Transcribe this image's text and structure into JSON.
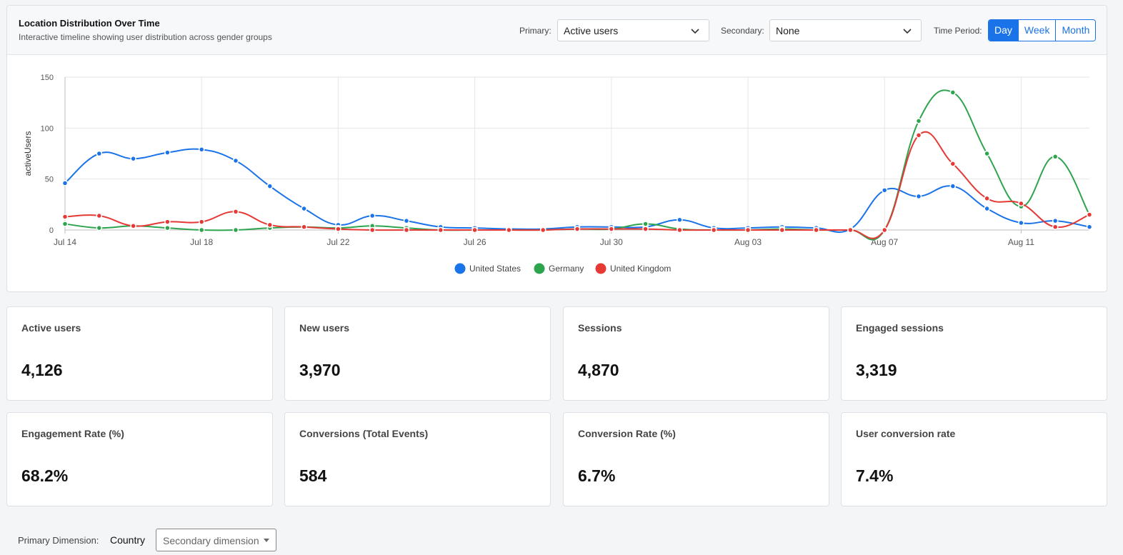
{
  "header": {
    "title": "Location Distribution Over Time",
    "subtitle": "Interactive timeline showing user distribution across gender groups"
  },
  "controls": {
    "primary_label": "Primary:",
    "primary_value": "Active users",
    "secondary_label": "Secondary:",
    "secondary_value": "None",
    "time_period_label": "Time Period:",
    "periods": [
      "Day",
      "Week",
      "Month"
    ],
    "active_period": "Day"
  },
  "chart_data": {
    "type": "line",
    "ylabel": "activeUsers",
    "ylim": [
      0,
      150
    ],
    "yticks": [
      0,
      50,
      100,
      150
    ],
    "xticks": [
      "Jul 14",
      "Jul 18",
      "Jul 22",
      "Jul 26",
      "Jul 30",
      "Aug 03",
      "Aug 07",
      "Aug 11"
    ],
    "x": [
      "Jul 14",
      "Jul 15",
      "Jul 16",
      "Jul 17",
      "Jul 18",
      "Jul 19",
      "Jul 20",
      "Jul 21",
      "Jul 22",
      "Jul 23",
      "Jul 24",
      "Jul 25",
      "Jul 26",
      "Jul 27",
      "Jul 28",
      "Jul 29",
      "Jul 30",
      "Jul 31",
      "Aug 01",
      "Aug 02",
      "Aug 03",
      "Aug 04",
      "Aug 05",
      "Aug 06",
      "Aug 07",
      "Aug 08",
      "Aug 09",
      "Aug 10",
      "Aug 11",
      "Aug 12",
      "Aug 13"
    ],
    "grid": true,
    "legend": "bottom-center",
    "series": [
      {
        "name": "United States",
        "color": "#1a73e8",
        "values": [
          46,
          75,
          70,
          76,
          79,
          68,
          43,
          21,
          5,
          14,
          9,
          3,
          2,
          1,
          1,
          3,
          3,
          3,
          10,
          2,
          2,
          3,
          2,
          1,
          39,
          33,
          43,
          21,
          7,
          9,
          3
        ]
      },
      {
        "name": "Germany",
        "color": "#2ea44f",
        "values": [
          6,
          2,
          4,
          2,
          0,
          0,
          2,
          3,
          2,
          4,
          2,
          0,
          0,
          0,
          0,
          1,
          1,
          6,
          1,
          0,
          0,
          1,
          0,
          0,
          0,
          107,
          135,
          75,
          23,
          72,
          15
        ]
      },
      {
        "name": "United Kingdom",
        "color": "#e53935",
        "values": [
          13,
          14,
          4,
          8,
          8,
          18,
          5,
          3,
          1,
          0,
          0,
          0,
          0,
          0,
          0,
          1,
          1,
          1,
          0,
          0,
          0,
          0,
          0,
          0,
          0,
          93,
          65,
          31,
          26,
          3,
          15
        ]
      }
    ]
  },
  "metrics": [
    {
      "label": "Active users",
      "value": "4,126"
    },
    {
      "label": "New users",
      "value": "3,970"
    },
    {
      "label": "Sessions",
      "value": "4,870"
    },
    {
      "label": "Engaged sessions",
      "value": "3,319"
    },
    {
      "label": "Engagement Rate (%)",
      "value": "68.2%"
    },
    {
      "label": "Conversions (Total Events)",
      "value": "584"
    },
    {
      "label": "Conversion Rate (%)",
      "value": "6.7%"
    },
    {
      "label": "User conversion rate",
      "value": "7.4%"
    }
  ],
  "footer": {
    "primary_dimension_label": "Primary Dimension:",
    "primary_dimension_value": "Country",
    "secondary_dimension_placeholder": "Secondary dimension"
  }
}
